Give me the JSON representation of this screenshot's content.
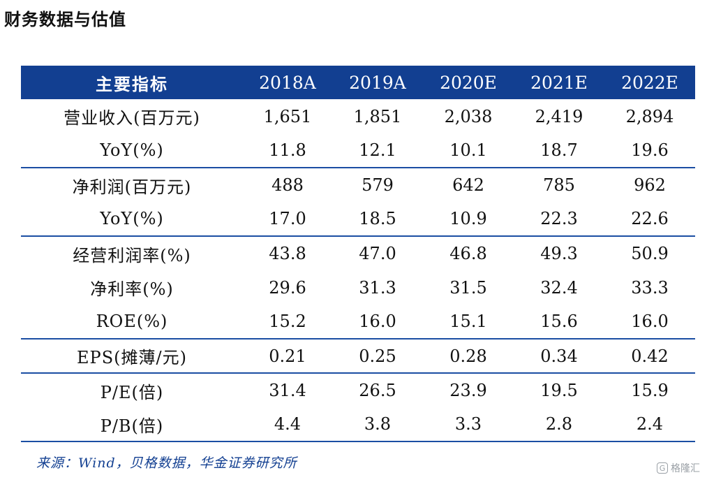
{
  "title": "财务数据与估值",
  "table": {
    "headers": [
      "主要指标",
      "2018A",
      "2019A",
      "2020E",
      "2021E",
      "2022E"
    ],
    "rows": [
      {
        "label": "营业收入(百万元)",
        "values": [
          "1,651",
          "1,851",
          "2,038",
          "2,419",
          "2,894"
        ]
      },
      {
        "label": "YoY(%)",
        "values": [
          "11.8",
          "12.1",
          "10.1",
          "18.7",
          "19.6"
        ]
      },
      {
        "label": "净利润(百万元)",
        "values": [
          "488",
          "579",
          "642",
          "785",
          "962"
        ]
      },
      {
        "label": "YoY(%)",
        "values": [
          "17.0",
          "18.5",
          "10.9",
          "22.3",
          "22.6"
        ]
      },
      {
        "label": "经营利润率(%)",
        "values": [
          "43.8",
          "47.0",
          "46.8",
          "49.3",
          "50.9"
        ]
      },
      {
        "label": "净利率(%)",
        "values": [
          "29.6",
          "31.3",
          "31.5",
          "32.4",
          "33.3"
        ]
      },
      {
        "label": "ROE(%)",
        "values": [
          "15.2",
          "16.0",
          "15.1",
          "15.6",
          "16.0"
        ]
      },
      {
        "label": "EPS(摊薄/元)",
        "values": [
          "0.21",
          "0.25",
          "0.28",
          "0.34",
          "0.42"
        ]
      },
      {
        "label": "P/E(倍)",
        "values": [
          "31.4",
          "26.5",
          "23.9",
          "19.5",
          "15.9"
        ]
      },
      {
        "label": "P/B(倍)",
        "values": [
          "4.4",
          "3.8",
          "3.3",
          "2.8",
          "2.4"
        ]
      }
    ]
  },
  "source": "来源：Wind，贝格数据，华金证券研究所",
  "watermark": {
    "text": "格隆汇",
    "icon": "logo-icon",
    "icon_glyph": "G"
  },
  "colors": {
    "header_bg": "#123f91",
    "divider": "#1b4ea3",
    "source_text": "#123f91"
  }
}
